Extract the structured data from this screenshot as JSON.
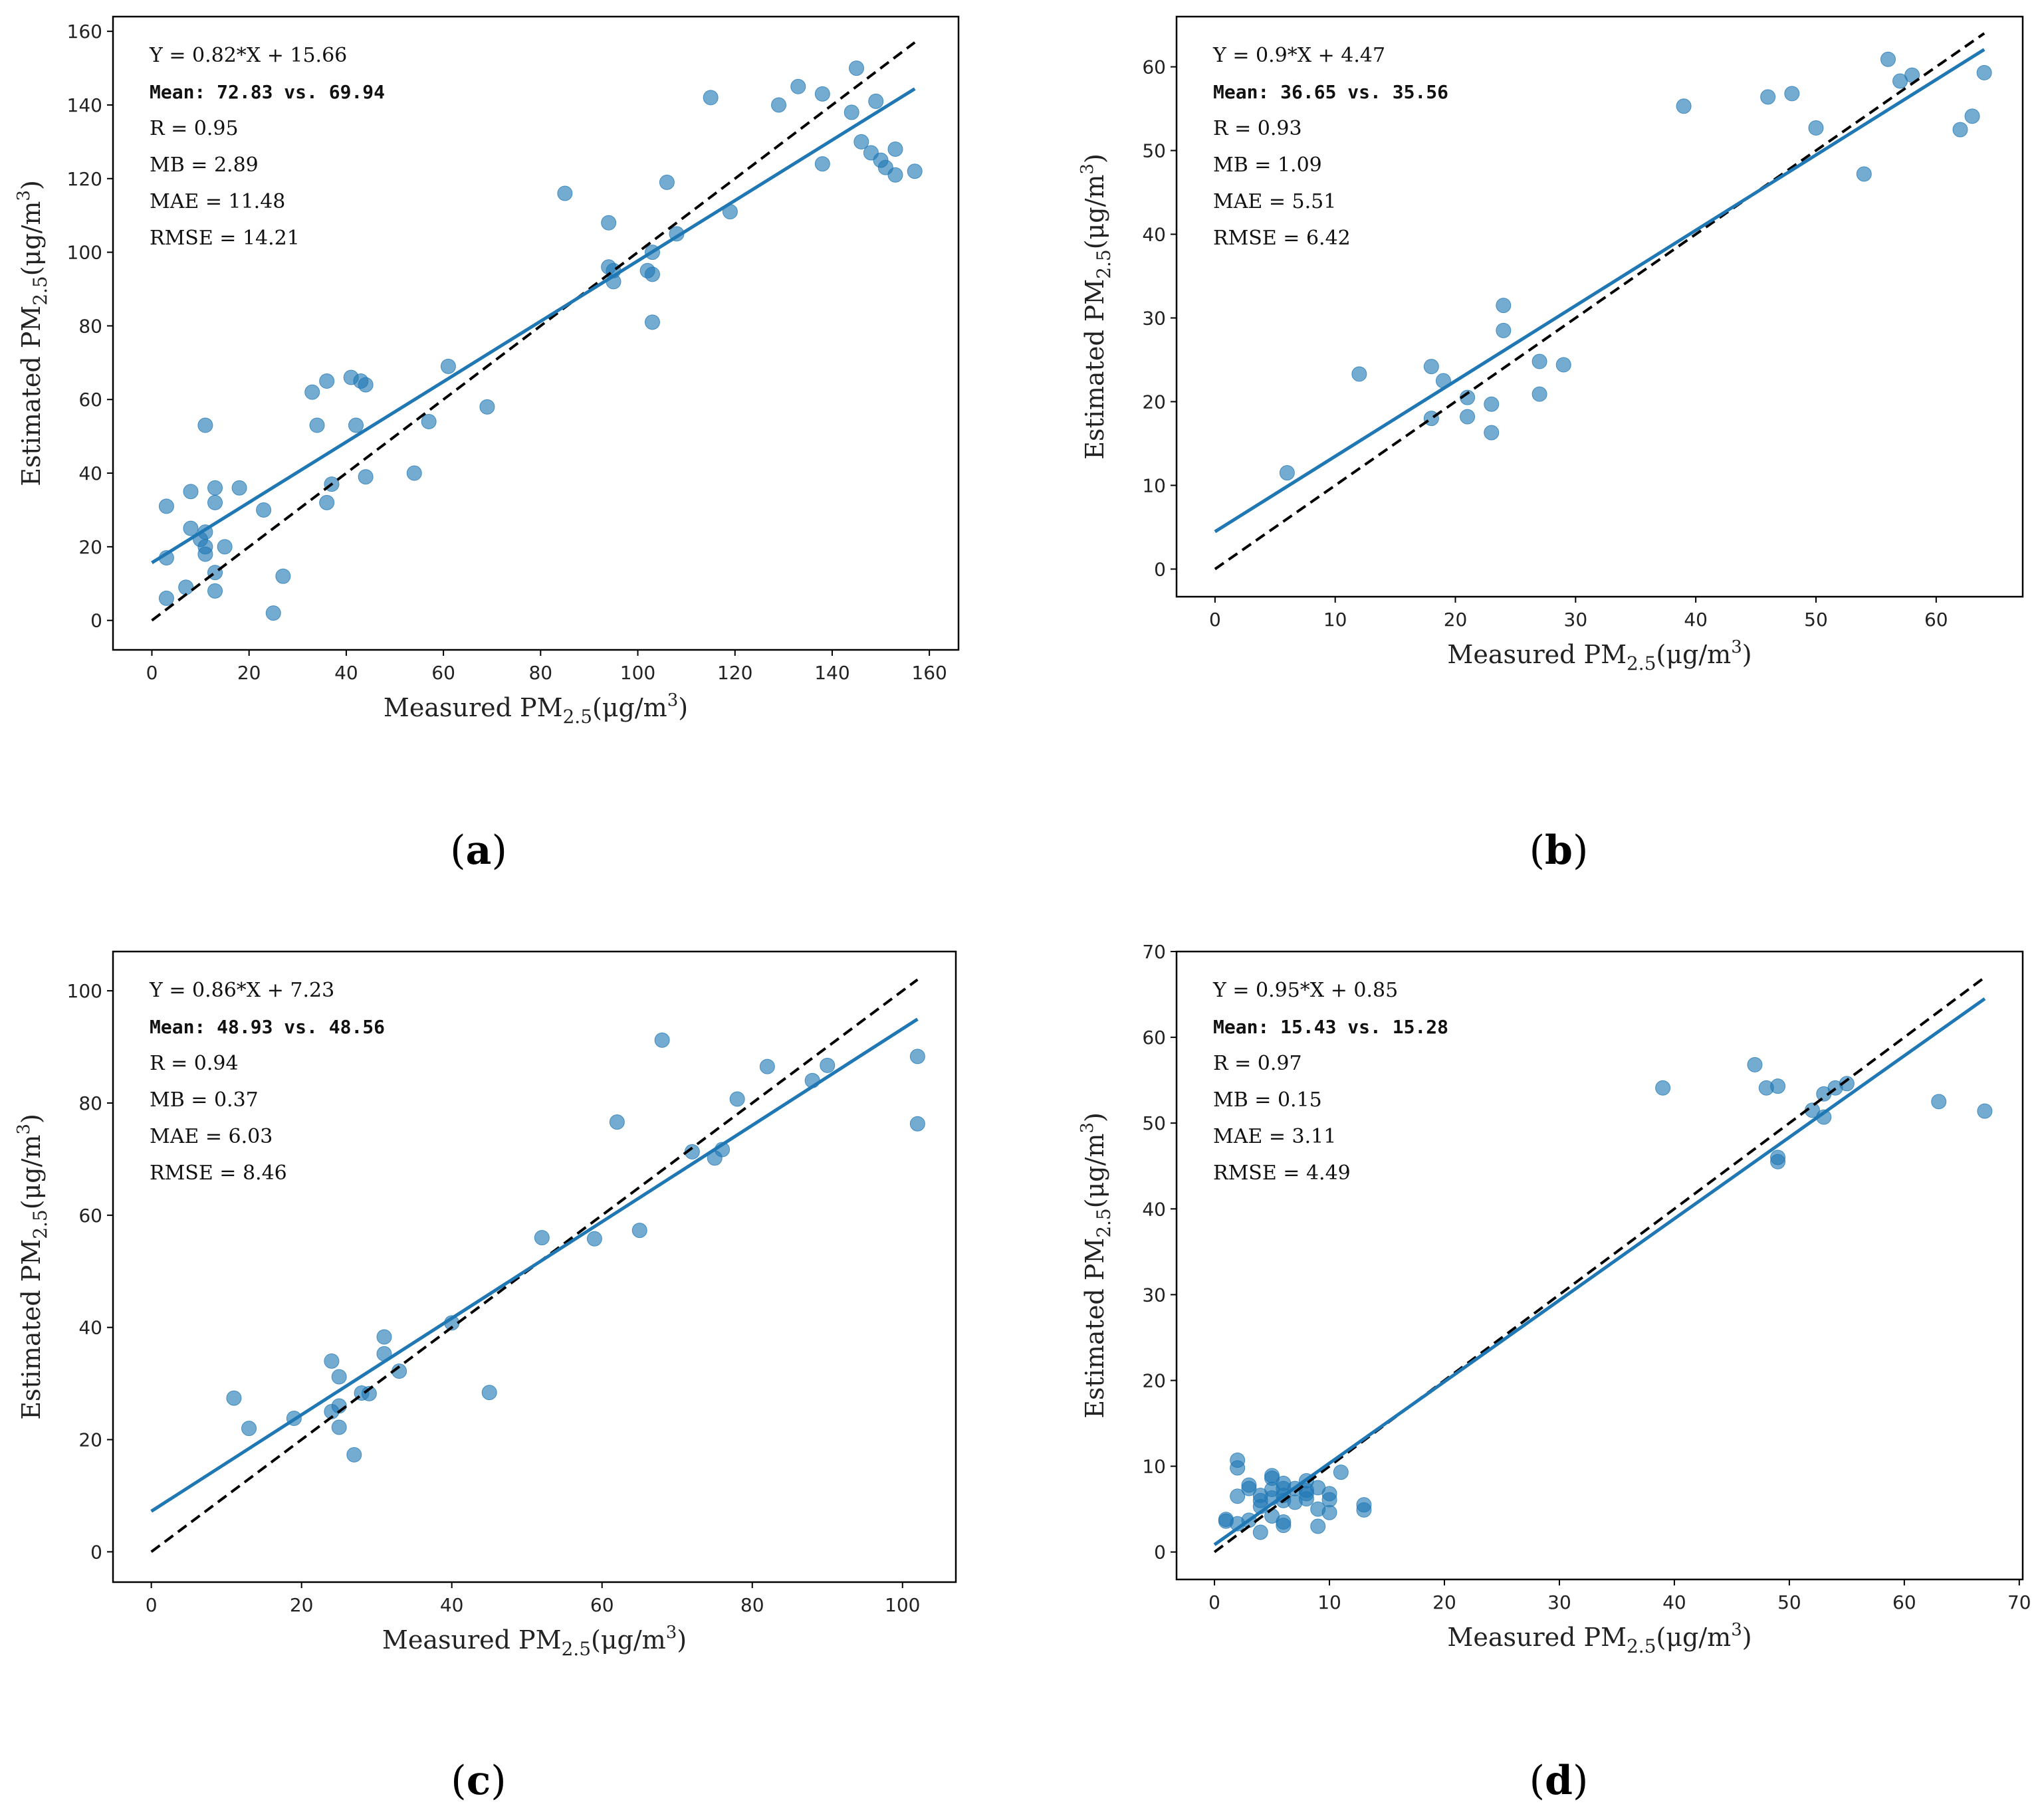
{
  "colors": {
    "point": "#1f77b4",
    "fit_line": "#1f77b4",
    "identity_line": "#000000",
    "axes": "#000000"
  },
  "chart_data": [
    {
      "type": "scatter",
      "panel_label": "a",
      "xlabel": "Measured PM2.5(μg/m3)",
      "ylabel": "Estimated PM2.5(μg/m3)",
      "xlim": [
        -8,
        166
      ],
      "ylim": [
        -8,
        164
      ],
      "xticks": [
        0,
        20,
        40,
        60,
        80,
        100,
        120,
        140,
        160
      ],
      "yticks": [
        0,
        20,
        40,
        60,
        80,
        100,
        120,
        140,
        160
      ],
      "fit": {
        "slope": 0.82,
        "intercept": 15.66,
        "x_range": [
          0,
          157
        ]
      },
      "identity_range": [
        0,
        157
      ],
      "stats": [
        "Y = 0.82*X + 15.66",
        "Mean: 72.83 vs. 69.94",
        "R = 0.95",
        "MB = 2.89",
        "MAE = 11.48",
        "RMSE = 14.21"
      ],
      "points": [
        [
          3,
          17
        ],
        [
          3,
          31
        ],
        [
          3,
          6
        ],
        [
          7,
          9
        ],
        [
          8,
          35
        ],
        [
          8,
          25
        ],
        [
          10,
          22
        ],
        [
          11,
          24
        ],
        [
          11,
          53
        ],
        [
          11,
          20
        ],
        [
          11,
          18
        ],
        [
          13,
          36
        ],
        [
          13,
          32
        ],
        [
          13,
          13
        ],
        [
          13,
          8
        ],
        [
          15,
          20
        ],
        [
          18,
          36
        ],
        [
          23,
          30
        ],
        [
          25,
          2
        ],
        [
          27,
          12
        ],
        [
          33,
          62
        ],
        [
          34,
          53
        ],
        [
          36,
          65
        ],
        [
          36,
          32
        ],
        [
          37,
          37
        ],
        [
          41,
          66
        ],
        [
          42,
          53
        ],
        [
          43,
          65
        ],
        [
          44,
          64
        ],
        [
          44,
          39
        ],
        [
          54,
          40
        ],
        [
          57,
          54
        ],
        [
          61,
          69
        ],
        [
          69,
          58
        ],
        [
          85,
          116
        ],
        [
          94,
          108
        ],
        [
          94,
          96
        ],
        [
          95,
          95
        ],
        [
          95,
          92
        ],
        [
          102,
          95
        ],
        [
          103,
          100
        ],
        [
          103,
          94
        ],
        [
          103,
          81
        ],
        [
          106,
          119
        ],
        [
          108,
          105
        ],
        [
          115,
          142
        ],
        [
          119,
          111
        ],
        [
          129,
          140
        ],
        [
          133,
          145
        ],
        [
          138,
          143
        ],
        [
          138,
          124
        ],
        [
          144,
          138
        ],
        [
          145,
          150
        ],
        [
          146,
          130
        ],
        [
          148,
          127
        ],
        [
          149,
          141
        ],
        [
          150,
          125
        ],
        [
          151,
          123
        ],
        [
          153,
          128
        ],
        [
          153,
          121
        ],
        [
          157,
          122
        ]
      ]
    },
    {
      "type": "scatter",
      "panel_label": "b",
      "xlabel": "Measured PM2.5(μg/m3)",
      "ylabel": "Estimated PM2.5(μg/m3)",
      "xlim": [
        -3.2,
        67.2
      ],
      "ylim": [
        -3.3,
        66
      ],
      "xticks": [
        0,
        10,
        20,
        30,
        40,
        50,
        60
      ],
      "yticks": [
        0,
        10,
        20,
        30,
        40,
        50,
        60
      ],
      "fit": {
        "slope": 0.9,
        "intercept": 4.47,
        "x_range": [
          0,
          64
        ]
      },
      "identity_range": [
        0,
        64
      ],
      "stats": [
        "Y = 0.9*X + 4.47",
        "Mean: 36.65 vs. 35.56",
        "R = 0.93",
        "MB = 1.09",
        "MAE = 5.51",
        "RMSE = 6.42"
      ],
      "points": [
        [
          6,
          11.5
        ],
        [
          12,
          23.3
        ],
        [
          18,
          24.2
        ],
        [
          18,
          18
        ],
        [
          19,
          22.5
        ],
        [
          21,
          20.5
        ],
        [
          21,
          18.2
        ],
        [
          23,
          19.7
        ],
        [
          23,
          16.3
        ],
        [
          24,
          31.5
        ],
        [
          24,
          28.5
        ],
        [
          27,
          24.8
        ],
        [
          27,
          20.9
        ],
        [
          29,
          24.4
        ],
        [
          39,
          55.3
        ],
        [
          46,
          56.4
        ],
        [
          48,
          56.8
        ],
        [
          50,
          52.7
        ],
        [
          54,
          47.2
        ],
        [
          56,
          60.9
        ],
        [
          57,
          58.3
        ],
        [
          58,
          59
        ],
        [
          62,
          52.5
        ],
        [
          63,
          54.1
        ],
        [
          64,
          59.3
        ]
      ]
    },
    {
      "type": "scatter",
      "panel_label": "c",
      "xlabel": "Measured PM2.5(μg/m3)",
      "ylabel": "Estimated PM2.5(μg/m3)",
      "xlim": [
        -5.1,
        107.1
      ],
      "ylim": [
        -5.4,
        107
      ],
      "xticks": [
        0,
        20,
        40,
        60,
        80,
        100
      ],
      "yticks": [
        0,
        20,
        40,
        60,
        80,
        100
      ],
      "fit": {
        "slope": 0.86,
        "intercept": 7.23,
        "x_range": [
          0,
          102
        ]
      },
      "identity_range": [
        0,
        102
      ],
      "stats": [
        "Y = 0.86*X + 7.23",
        "Mean: 48.93 vs. 48.56",
        "R = 0.94",
        "MB = 0.37",
        "MAE = 6.03",
        "RMSE = 8.46"
      ],
      "points": [
        [
          11,
          27.4
        ],
        [
          13,
          22
        ],
        [
          19,
          23.8
        ],
        [
          24,
          34
        ],
        [
          24,
          25
        ],
        [
          25,
          31.2
        ],
        [
          25,
          26
        ],
        [
          25,
          22.2
        ],
        [
          27,
          17.3
        ],
        [
          28,
          28.3
        ],
        [
          29,
          28.2
        ],
        [
          31,
          38.3
        ],
        [
          31,
          35.3
        ],
        [
          33,
          32.2
        ],
        [
          40,
          40.8
        ],
        [
          45,
          28.4
        ],
        [
          52,
          56
        ],
        [
          59,
          55.8
        ],
        [
          62,
          76.6
        ],
        [
          65,
          57.3
        ],
        [
          68,
          91.2
        ],
        [
          72,
          71.3
        ],
        [
          75,
          70.2
        ],
        [
          76,
          71.7
        ],
        [
          78,
          80.7
        ],
        [
          82,
          86.5
        ],
        [
          88,
          84
        ],
        [
          90,
          86.7
        ],
        [
          102,
          88.3
        ],
        [
          102,
          76.3
        ]
      ]
    },
    {
      "type": "scatter",
      "panel_label": "d",
      "xlabel": "Measured PM2.5(μg/m3)",
      "ylabel": "Estimated PM2.5(μg/m3)",
      "xlim": [
        -3.3,
        70.3
      ],
      "ylim": [
        -3.2,
        70
      ],
      "xticks": [
        0,
        10,
        20,
        30,
        40,
        50,
        60,
        70
      ],
      "yticks": [
        0,
        10,
        20,
        30,
        40,
        50,
        60,
        70
      ],
      "fit": {
        "slope": 0.95,
        "intercept": 0.85,
        "x_range": [
          0,
          67
        ]
      },
      "identity_range": [
        0,
        67
      ],
      "stats": [
        "Y = 0.95*X + 0.85",
        "Mean: 15.43 vs. 15.28",
        "R = 0.97",
        "MB = 0.15",
        "MAE = 3.11",
        "RMSE = 4.49"
      ],
      "points": [
        [
          1,
          3.8
        ],
        [
          1,
          3.6
        ],
        [
          2,
          10.7
        ],
        [
          2,
          9.8
        ],
        [
          2,
          6.5
        ],
        [
          2,
          3.3
        ],
        [
          3,
          7.8
        ],
        [
          3,
          7.4
        ],
        [
          3,
          3.7
        ],
        [
          4,
          6.6
        ],
        [
          4,
          6
        ],
        [
          4,
          5.3
        ],
        [
          4,
          2.3
        ],
        [
          5,
          8.9
        ],
        [
          5,
          8.6
        ],
        [
          5,
          7.3
        ],
        [
          5,
          6.3
        ],
        [
          5,
          4.2
        ],
        [
          6,
          8
        ],
        [
          6,
          7.4
        ],
        [
          6,
          6.6
        ],
        [
          6,
          6
        ],
        [
          6,
          3.5
        ],
        [
          6,
          3.1
        ],
        [
          7,
          7.4
        ],
        [
          7,
          5.8
        ],
        [
          8,
          8.3
        ],
        [
          8,
          7.2
        ],
        [
          8,
          6.8
        ],
        [
          8,
          6.2
        ],
        [
          9,
          7.5
        ],
        [
          9,
          5
        ],
        [
          9,
          3
        ],
        [
          10,
          6.8
        ],
        [
          10,
          6.1
        ],
        [
          10,
          4.6
        ],
        [
          11,
          9.3
        ],
        [
          13,
          5.5
        ],
        [
          13,
          4.9
        ],
        [
          39,
          54.1
        ],
        [
          47,
          56.8
        ],
        [
          48,
          54.1
        ],
        [
          49,
          54.3
        ],
        [
          49,
          46
        ],
        [
          49,
          45.5
        ],
        [
          52,
          51.5
        ],
        [
          53,
          53.4
        ],
        [
          53,
          50.7
        ],
        [
          54,
          54.1
        ],
        [
          55,
          54.6
        ],
        [
          63,
          52.5
        ],
        [
          67,
          51.4
        ]
      ]
    }
  ]
}
